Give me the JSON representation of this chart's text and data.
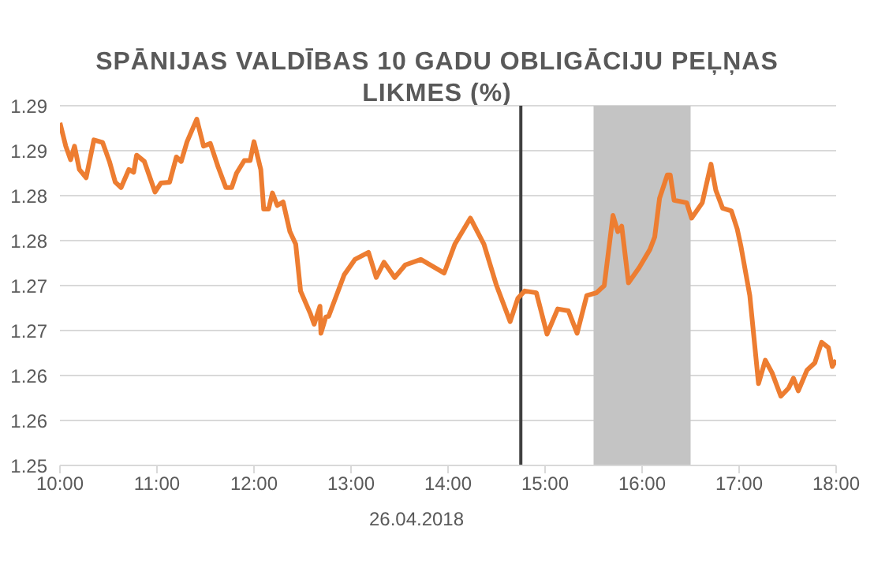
{
  "chart_data": {
    "type": "line",
    "title": "SPĀNIJAS VALDĪBAS 10 GADU OBLIGĀCIJU PEĻŅAS LIKMES (%)",
    "xlabel": "26.04.2018",
    "x": [
      10.0,
      10.06,
      10.11,
      10.15,
      10.2,
      10.27,
      10.35,
      10.44,
      10.51,
      10.57,
      10.63,
      10.71,
      10.76,
      10.79,
      10.87,
      10.98,
      11.04,
      11.13,
      11.2,
      11.25,
      11.31,
      11.41,
      11.48,
      11.55,
      11.63,
      11.71,
      11.77,
      11.82,
      11.9,
      11.96,
      12.0,
      12.07,
      12.1,
      12.15,
      12.19,
      12.24,
      12.3,
      12.37,
      12.43,
      12.48,
      12.58,
      12.62,
      12.68,
      12.69,
      12.74,
      12.77,
      12.93,
      13.04,
      13.18,
      13.26,
      13.34,
      13.45,
      13.56,
      13.72,
      13.96,
      14.07,
      14.23,
      14.37,
      14.5,
      14.64,
      14.72,
      14.79,
      14.91,
      15.02,
      15.13,
      15.24,
      15.33,
      15.43,
      15.53,
      15.61,
      15.7,
      15.75,
      15.79,
      15.86,
      15.97,
      16.08,
      16.13,
      16.18,
      16.26,
      16.29,
      16.33,
      16.46,
      16.51,
      16.62,
      16.71,
      16.76,
      16.83,
      16.92,
      16.98,
      17.02,
      17.11,
      17.2,
      17.27,
      17.34,
      17.43,
      17.51,
      17.56,
      17.61,
      17.7,
      17.78,
      17.85,
      17.92,
      17.96,
      18.0
    ],
    "series": [
      {
        "color": "#ed7d31",
        "values": [
          1.2881,
          1.2855,
          1.284,
          1.2855,
          1.2829,
          1.282,
          1.2862,
          1.2859,
          1.2838,
          1.2815,
          1.2809,
          1.2829,
          1.2826,
          1.2845,
          1.2838,
          1.2804,
          1.2814,
          1.2815,
          1.2843,
          1.2838,
          1.286,
          1.2885,
          1.2855,
          1.2858,
          1.2832,
          1.2809,
          1.2809,
          1.2825,
          1.2839,
          1.2839,
          1.286,
          1.2829,
          1.2785,
          1.2785,
          1.2803,
          1.2789,
          1.2793,
          1.276,
          1.2746,
          1.2694,
          1.2669,
          1.2657,
          1.2677,
          1.2647,
          1.2665,
          1.2666,
          1.2712,
          1.2729,
          1.2737,
          1.2709,
          1.2726,
          1.2709,
          1.2723,
          1.2729,
          1.2714,
          1.2746,
          1.2775,
          1.2746,
          1.27,
          1.266,
          1.2686,
          1.2694,
          1.2692,
          1.2646,
          1.2674,
          1.2672,
          1.2647,
          1.2689,
          1.2692,
          1.27,
          1.2778,
          1.276,
          1.2766,
          1.2703,
          1.272,
          1.274,
          1.2754,
          1.2797,
          1.2823,
          1.2823,
          1.2795,
          1.2792,
          1.2775,
          1.2792,
          1.2835,
          1.2806,
          1.2786,
          1.2783,
          1.2763,
          1.2743,
          1.2689,
          1.2591,
          1.2617,
          1.2603,
          1.2577,
          1.2586,
          1.2597,
          1.2583,
          1.2606,
          1.2614,
          1.2637,
          1.2631,
          1.261,
          1.2617
        ]
      }
    ],
    "xlim": [
      10,
      18
    ],
    "xticks": [
      {
        "value": 10,
        "label": "10:00"
      },
      {
        "value": 11,
        "label": "11:00"
      },
      {
        "value": 12,
        "label": "12:00"
      },
      {
        "value": 13,
        "label": "13:00"
      },
      {
        "value": 14,
        "label": "14:00"
      },
      {
        "value": 15,
        "label": "15:00"
      },
      {
        "value": 16,
        "label": "16:00"
      },
      {
        "value": 17,
        "label": "17:00"
      },
      {
        "value": 18,
        "label": "18:00"
      }
    ],
    "ylim": [
      1.25,
      1.29
    ],
    "yticks": [
      1.25,
      {
        "value": 1.255,
        "label": "1.26"
      },
      1.26,
      {
        "value": 1.265,
        "label": "1.27"
      },
      1.27,
      {
        "value": 1.275,
        "label": "1.28"
      },
      1.28,
      {
        "value": 1.285,
        "label": "1.29"
      },
      1.29
    ],
    "ref_lines": [
      {
        "axis": "x",
        "value": 14.75,
        "color": "#404040"
      }
    ],
    "bands": [
      {
        "axis": "x",
        "from": 15.5,
        "to": 16.5,
        "color": "#c4c4c4"
      }
    ],
    "grid": "y",
    "legend": false,
    "marker": "none",
    "line_style": "solid"
  }
}
